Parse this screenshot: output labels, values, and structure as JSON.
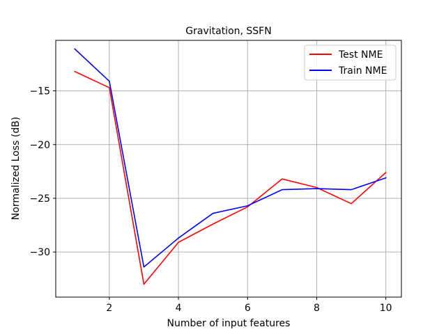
{
  "chart_data": {
    "type": "line",
    "title": "Gravitation, SSFN",
    "xlabel": "Number of input features",
    "ylabel": "Normalized Loss (dB)",
    "xlim": [
      0.45,
      10.45
    ],
    "ylim": [
      -34.2,
      -10.3
    ],
    "x_ticks": [
      2,
      4,
      6,
      8,
      10
    ],
    "x_tick_labels": [
      "2",
      "4",
      "6",
      "8",
      "10"
    ],
    "y_ticks": [
      -30,
      -25,
      -20,
      -15
    ],
    "y_tick_labels": [
      "−30",
      "−25",
      "−20",
      "−15"
    ],
    "grid": true,
    "legend_position": "top-right",
    "x": [
      1,
      2,
      3,
      4,
      5,
      6,
      7,
      8,
      9,
      10
    ],
    "series": [
      {
        "name": "Test NME",
        "color": "#ff0000",
        "values": [
          -13.2,
          -14.7,
          -33.0,
          -29.1,
          -27.4,
          -25.8,
          -23.2,
          -24.0,
          -25.5,
          -22.6
        ]
      },
      {
        "name": "Train NME",
        "color": "#0000ff",
        "values": [
          -11.1,
          -14.1,
          -31.4,
          -28.7,
          -26.4,
          -25.7,
          -24.2,
          -24.1,
          -24.2,
          -23.1
        ]
      }
    ]
  }
}
